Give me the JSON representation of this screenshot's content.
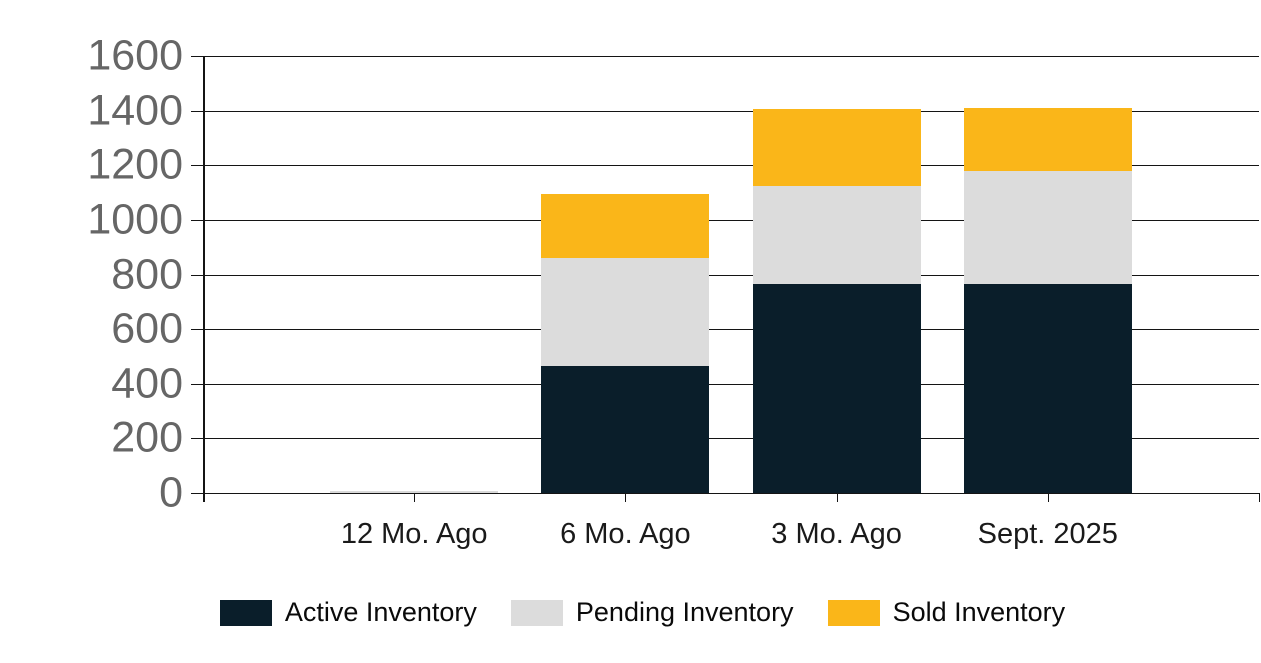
{
  "chart_data": {
    "type": "bar",
    "stacked": true,
    "title": "",
    "xlabel": "",
    "ylabel": "",
    "categories": [
      "12 Mo. Ago",
      "6 Mo. Ago",
      "3 Mo. Ago",
      "Sept. 2025"
    ],
    "series": [
      {
        "name": "Active Inventory",
        "color": "#0A1E2A",
        "values": [
          0,
          465,
          765,
          765
        ]
      },
      {
        "name": "Pending Inventory",
        "color": "#DCDCDC",
        "values": [
          0,
          395,
          360,
          415
        ]
      },
      {
        "name": "Sold Inventory",
        "color": "#FAB619",
        "values": [
          0,
          235,
          280,
          230
        ]
      }
    ],
    "stack_totals": [
      0,
      1095,
      1405,
      1410
    ],
    "ylim": [
      0,
      1600
    ],
    "ytick_step": 200,
    "ytick_labels": [
      "0",
      "200",
      "400",
      "600",
      "800",
      "1000",
      "1200",
      "1400",
      "1600"
    ],
    "grid": true,
    "legend_position": "bottom",
    "colors": {
      "grid_line": "#141414",
      "y_tick_label": "#666666",
      "x_tick_label": "#1a1a1a",
      "legend_text": "#0a0a0a",
      "zero_bar_sliver": "#D9D9D9",
      "background": "#ffffff"
    }
  }
}
